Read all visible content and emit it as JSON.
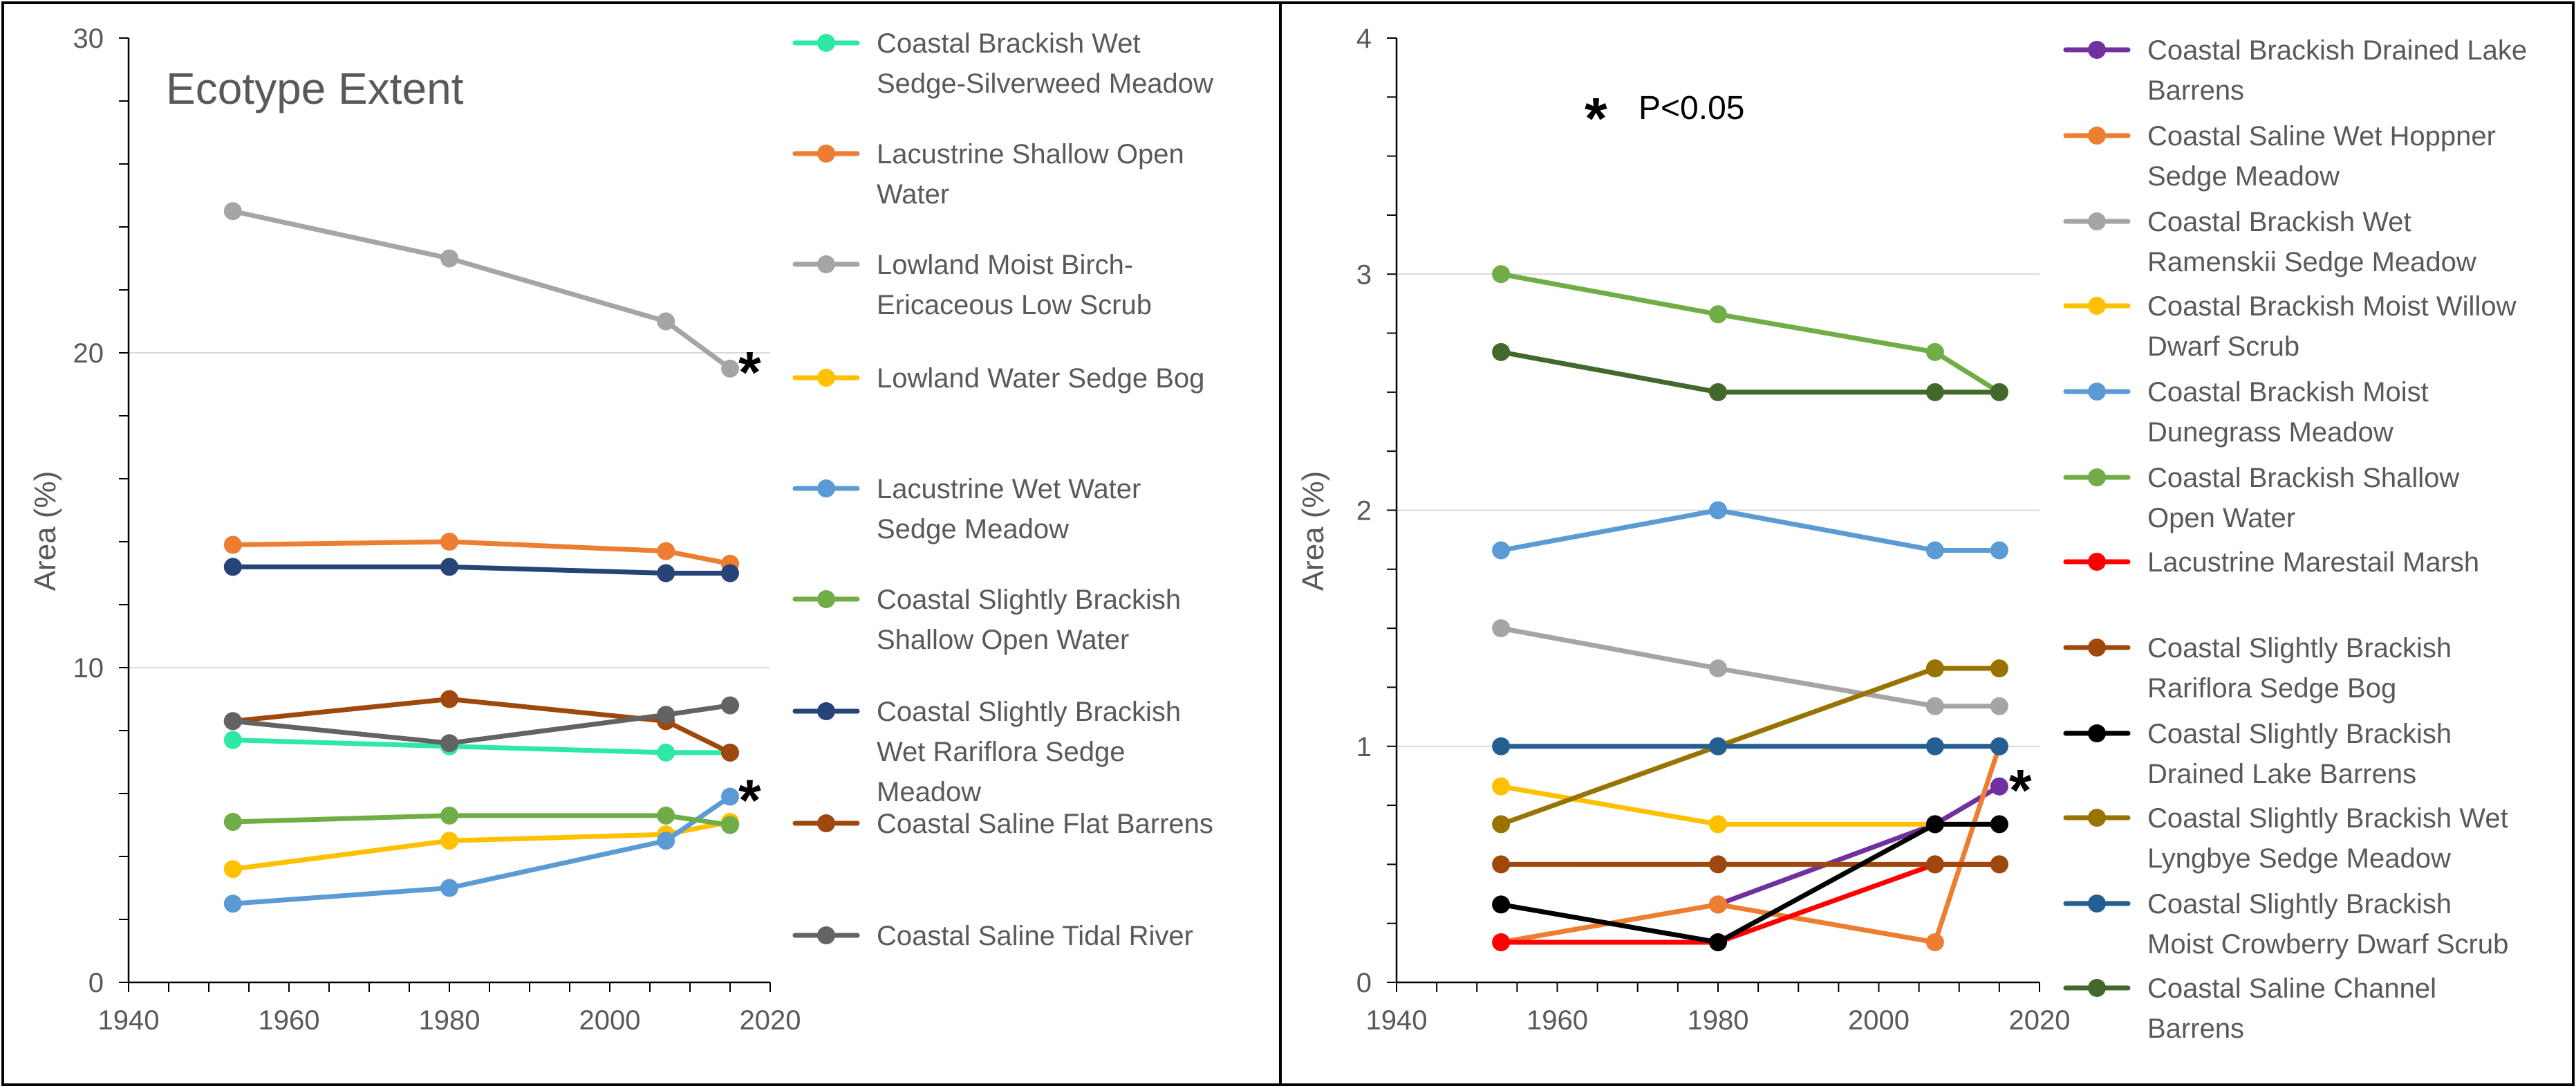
{
  "chart_data": [
    {
      "type": "line",
      "title": "Ecotype Extent",
      "xlabel": "",
      "ylabel": "Area (%)",
      "xlim": [
        1940,
        2020
      ],
      "ylim": [
        0,
        30
      ],
      "xticks": [
        1940,
        1960,
        1980,
        2000,
        2020
      ],
      "yticks": [
        0,
        10,
        20,
        30
      ],
      "minor_x_step": 5,
      "minor_y_step": 2,
      "gridlines": [
        10,
        20
      ],
      "significance_marker": "*",
      "series": [
        {
          "name": "Coastal Brackish Wet Sedge-Silverweed Meadow",
          "label_lines": [
            "Coastal Brackish Wet",
            "Sedge-Silverweed Meadow"
          ],
          "color": "#2EE8A5",
          "x": [
            1953,
            1980,
            2007,
            2015
          ],
          "y": [
            7.7,
            7.5,
            7.3,
            7.3
          ],
          "significant": false
        },
        {
          "name": "Lacustrine Shallow Open Water",
          "label_lines": [
            "Lacustrine Shallow Open",
            "Water"
          ],
          "color": "#ED7D31",
          "x": [
            1953,
            1980,
            2007,
            2015
          ],
          "y": [
            13.9,
            14.0,
            13.7,
            13.3
          ],
          "significant": false
        },
        {
          "name": "Lowland Moist Birch-Ericaceous Low Scrub",
          "label_lines": [
            "Lowland Moist Birch-",
            "Ericaceous Low Scrub"
          ],
          "color": "#A5A5A5",
          "x": [
            1953,
            1980,
            2007,
            2015
          ],
          "y": [
            24.5,
            23.0,
            21.0,
            19.5
          ],
          "significant": true
        },
        {
          "name": "Lowland Water Sedge Bog",
          "label_lines": [
            "Lowland Water Sedge Bog"
          ],
          "color": "#FFC000",
          "x": [
            1953,
            1980,
            2007,
            2015
          ],
          "y": [
            3.6,
            4.5,
            4.7,
            5.1
          ],
          "significant": false
        },
        {
          "name": "Lacustrine Wet Water Sedge Meadow",
          "label_lines": [
            "Lacustrine Wet Water",
            "Sedge Meadow"
          ],
          "color": "#5B9BD5",
          "x": [
            1953,
            1980,
            2007,
            2015
          ],
          "y": [
            2.5,
            3.0,
            4.5,
            5.9
          ],
          "significant": true
        },
        {
          "name": "Coastal Slightly Brackish Shallow Open Water",
          "label_lines": [
            "Coastal Slightly Brackish",
            "Shallow Open Water"
          ],
          "color": "#70AD47",
          "x": [
            1953,
            1980,
            2007,
            2015
          ],
          "y": [
            5.1,
            5.3,
            5.3,
            5.0
          ],
          "significant": false
        },
        {
          "name": "Coastal Slightly Brackish Wet Rariflora Sedge Meadow",
          "label_lines": [
            "Coastal Slightly Brackish",
            "Wet Rariflora Sedge",
            "Meadow"
          ],
          "color": "#264478",
          "x": [
            1953,
            1980,
            2007,
            2015
          ],
          "y": [
            13.2,
            13.2,
            13.0,
            13.0
          ],
          "significant": false
        },
        {
          "name": "Coastal Saline Flat Barrens",
          "label_lines": [
            "Coastal Saline Flat Barrens"
          ],
          "color": "#9E480E",
          "x": [
            1953,
            1980,
            2007,
            2015
          ],
          "y": [
            8.3,
            9.0,
            8.3,
            7.3
          ],
          "significant": false
        },
        {
          "name": "Coastal Saline Tidal River",
          "label_lines": [
            "Coastal Saline Tidal River"
          ],
          "color": "#636363",
          "x": [
            1953,
            1980,
            2007,
            2015
          ],
          "y": [
            8.3,
            7.6,
            8.5,
            8.8
          ],
          "significant": false
        }
      ]
    },
    {
      "type": "line",
      "title": "",
      "xlabel": "",
      "ylabel": "Area (%)",
      "xlim": [
        1940,
        2020
      ],
      "ylim": [
        0,
        4
      ],
      "xticks": [
        1940,
        1960,
        1980,
        2000,
        2020
      ],
      "yticks": [
        0,
        1,
        2,
        3,
        4
      ],
      "minor_x_step": 5,
      "minor_y_step": 0.25,
      "gridlines": [
        1,
        2,
        3
      ],
      "significance_marker": "*",
      "annotation": {
        "symbol": "*",
        "text": "P<0.05"
      },
      "series": [
        {
          "name": "Coastal Brackish Drained Lake Barrens",
          "label_lines": [
            "Coastal Brackish Drained Lake",
            "Barrens"
          ],
          "color": "#7030A0",
          "x": [
            1980,
            2007,
            2015
          ],
          "y": [
            0.33,
            0.67,
            0.83
          ],
          "significant": true
        },
        {
          "name": "Coastal Saline Wet Hoppner Sedge Meadow",
          "label_lines": [
            "Coastal Saline Wet Hoppner",
            "Sedge Meadow"
          ],
          "color": "#ED7D31",
          "x": [
            1953,
            1980,
            2007,
            2015
          ],
          "y": [
            0.17,
            0.33,
            0.17,
            1.0
          ],
          "significant": false
        },
        {
          "name": "Coastal Brackish Wet Ramenskii Sedge Meadow",
          "label_lines": [
            "Coastal Brackish Wet",
            "Ramenskii Sedge Meadow"
          ],
          "color": "#A5A5A5",
          "x": [
            1953,
            1980,
            2007,
            2015
          ],
          "y": [
            1.5,
            1.33,
            1.17,
            1.17
          ],
          "significant": false
        },
        {
          "name": "Coastal Brackish Moist Willow Dwarf Scrub",
          "label_lines": [
            "Coastal Brackish Moist Willow",
            "Dwarf Scrub"
          ],
          "color": "#FFC000",
          "x": [
            1953,
            1980,
            2007,
            2015
          ],
          "y": [
            0.83,
            0.67,
            0.67,
            0.67
          ],
          "significant": false
        },
        {
          "name": "Coastal Brackish Moist Dunegrass Meadow",
          "label_lines": [
            "Coastal Brackish Moist",
            "Dunegrass Meadow"
          ],
          "color": "#5B9BD5",
          "x": [
            1953,
            1980,
            2007,
            2015
          ],
          "y": [
            1.83,
            2.0,
            1.83,
            1.83
          ],
          "significant": false
        },
        {
          "name": "Coastal Brackish Shallow Open Water",
          "label_lines": [
            "Coastal Brackish Shallow",
            "Open Water"
          ],
          "color": "#70AD47",
          "x": [
            1953,
            1980,
            2007,
            2015
          ],
          "y": [
            3.0,
            2.83,
            2.67,
            2.5
          ],
          "significant": false
        },
        {
          "name": "Lacustrine Marestail Marsh",
          "label_lines": [
            "Lacustrine Marestail Marsh"
          ],
          "color": "#FF0000",
          "x": [
            1953,
            1980,
            2007,
            2015
          ],
          "y": [
            0.17,
            0.17,
            0.5,
            0.5
          ],
          "significant": false
        },
        {
          "name": "Coastal Slightly Brackish Rariflora Sedge Bog",
          "label_lines": [
            "Coastal Slightly Brackish",
            "Rariflora Sedge Bog"
          ],
          "color": "#9E480E",
          "x": [
            1953,
            1980,
            2007,
            2015
          ],
          "y": [
            0.5,
            0.5,
            0.5,
            0.5
          ],
          "significant": false
        },
        {
          "name": "Coastal Slightly Brackish Drained Lake Barrens",
          "label_lines": [
            "Coastal Slightly Brackish",
            "Drained Lake Barrens"
          ],
          "color": "#000000",
          "x": [
            1953,
            1980,
            2007,
            2015
          ],
          "y": [
            0.33,
            0.17,
            0.67,
            0.67
          ],
          "significant": false
        },
        {
          "name": "Coastal Slightly Brackish Wet Lyngbye Sedge Meadow",
          "label_lines": [
            "Coastal Slightly Brackish Wet",
            "Lyngbye Sedge Meadow"
          ],
          "color": "#997300",
          "x": [
            1953,
            1980,
            2007,
            2015
          ],
          "y": [
            0.67,
            1.0,
            1.33,
            1.33
          ],
          "significant": false
        },
        {
          "name": "Coastal Slightly Brackish Moist Crowberry Dwarf Scrub",
          "label_lines": [
            "Coastal Slightly Brackish",
            "Moist Crowberry Dwarf Scrub"
          ],
          "color": "#255E91",
          "x": [
            1953,
            1980,
            2007,
            2015
          ],
          "y": [
            1.0,
            1.0,
            1.0,
            1.0
          ],
          "significant": false
        },
        {
          "name": "Coastal Saline Channel Barrens",
          "label_lines": [
            "Coastal Saline Channel",
            "Barrens"
          ],
          "color": "#43682B",
          "x": [
            1953,
            1980,
            2007,
            2015
          ],
          "y": [
            2.67,
            2.5,
            2.5,
            2.5
          ],
          "significant": false
        }
      ]
    }
  ]
}
